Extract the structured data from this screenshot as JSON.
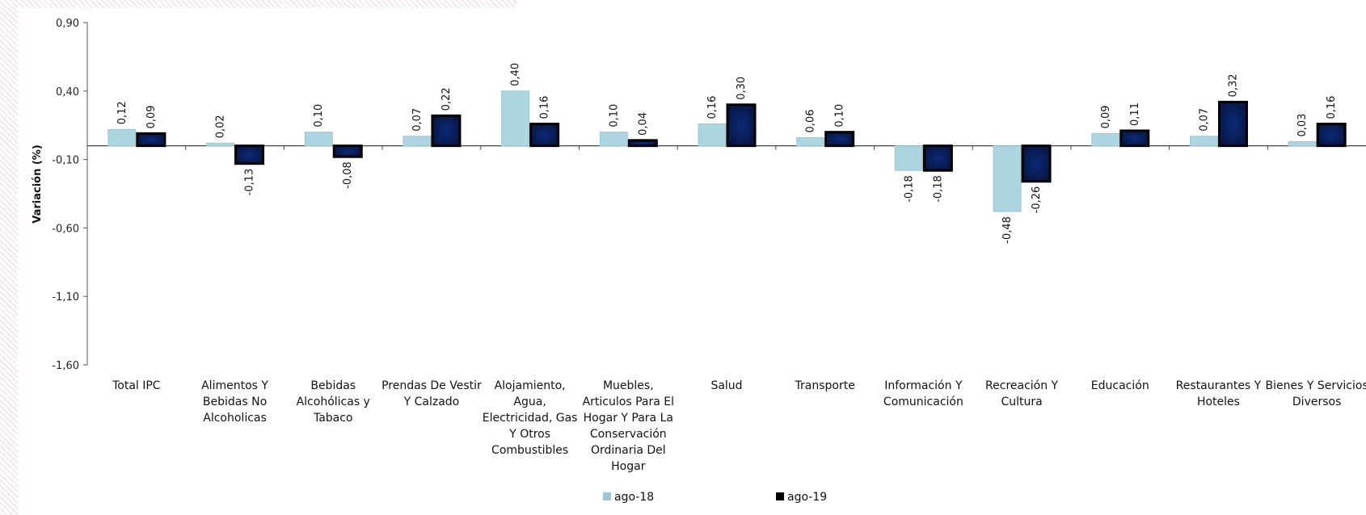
{
  "chart_data": {
    "type": "bar",
    "title": "",
    "xlabel": "",
    "ylabel": "Variación (%)",
    "ylim": [
      -1.6,
      0.9
    ],
    "yticks": [
      "0,90",
      "0,40",
      "-0,10",
      "-0,60",
      "-1,10",
      "-1,60"
    ],
    "legend_position": "bottom",
    "categories": [
      "Total IPC",
      "Alimentos Y Bebidas No Alcoholicas",
      "Bebidas Alcohólicas y Tabaco",
      "Prendas De Vestir Y Calzado",
      "Alojamiento, Agua, Electricidad, Gas Y Otros Combustibles",
      "Muebles, Articulos Para El Hogar Y Para La Conservación Ordinaria Del Hogar",
      "Salud",
      "Transporte",
      "Información Y Comunicación",
      "Recreación Y Cultura",
      "Educación",
      "Restaurantes Y Hoteles",
      "Bienes Y Servicios Diversos"
    ],
    "category_lines": [
      [
        "Total IPC"
      ],
      [
        "Alimentos Y",
        "Bebidas No",
        "Alcoholicas"
      ],
      [
        "Bebidas",
        "Alcohólicas y",
        "Tabaco"
      ],
      [
        "Prendas De Vestir",
        "Y Calzado"
      ],
      [
        "Alojamiento,",
        "Agua,",
        "Electricidad, Gas",
        "Y Otros",
        "Combustibles"
      ],
      [
        "Muebles,",
        "Articulos Para El",
        "Hogar Y Para La",
        "Conservación",
        "Ordinaria Del",
        "Hogar"
      ],
      [
        "Salud"
      ],
      [
        "Transporte"
      ],
      [
        "Información Y",
        "Comunicación"
      ],
      [
        "Recreación Y",
        "Cultura"
      ],
      [
        "Educación"
      ],
      [
        "Restaurantes Y",
        "Hoteles"
      ],
      [
        "Bienes Y Servicios",
        "Diversos"
      ]
    ],
    "series": [
      {
        "name": "ago-18",
        "color": "#add5e0",
        "values": [
          0.12,
          0.02,
          0.1,
          0.07,
          0.4,
          0.1,
          0.16,
          0.06,
          -0.18,
          -0.48,
          0.09,
          0.07,
          0.03
        ],
        "labels": [
          "0,12",
          "0,02",
          "0,10",
          "0,07",
          "0,40",
          "0,10",
          "0,16",
          "0,06",
          "-0,18",
          "-0,48",
          "0,09",
          "0,07",
          "0,03"
        ]
      },
      {
        "name": "ago-19",
        "color": "#0a1f5c",
        "values": [
          0.09,
          -0.13,
          -0.08,
          0.22,
          0.16,
          0.04,
          0.3,
          0.1,
          -0.18,
          -0.26,
          0.11,
          0.32,
          0.16
        ],
        "labels": [
          "0,09",
          "-0,13",
          "-0,08",
          "0,22",
          "0,16",
          "0,04",
          "0,30",
          "0,10",
          "-0,18",
          "-0,26",
          "0,11",
          "0,32",
          "0,16"
        ]
      }
    ]
  }
}
